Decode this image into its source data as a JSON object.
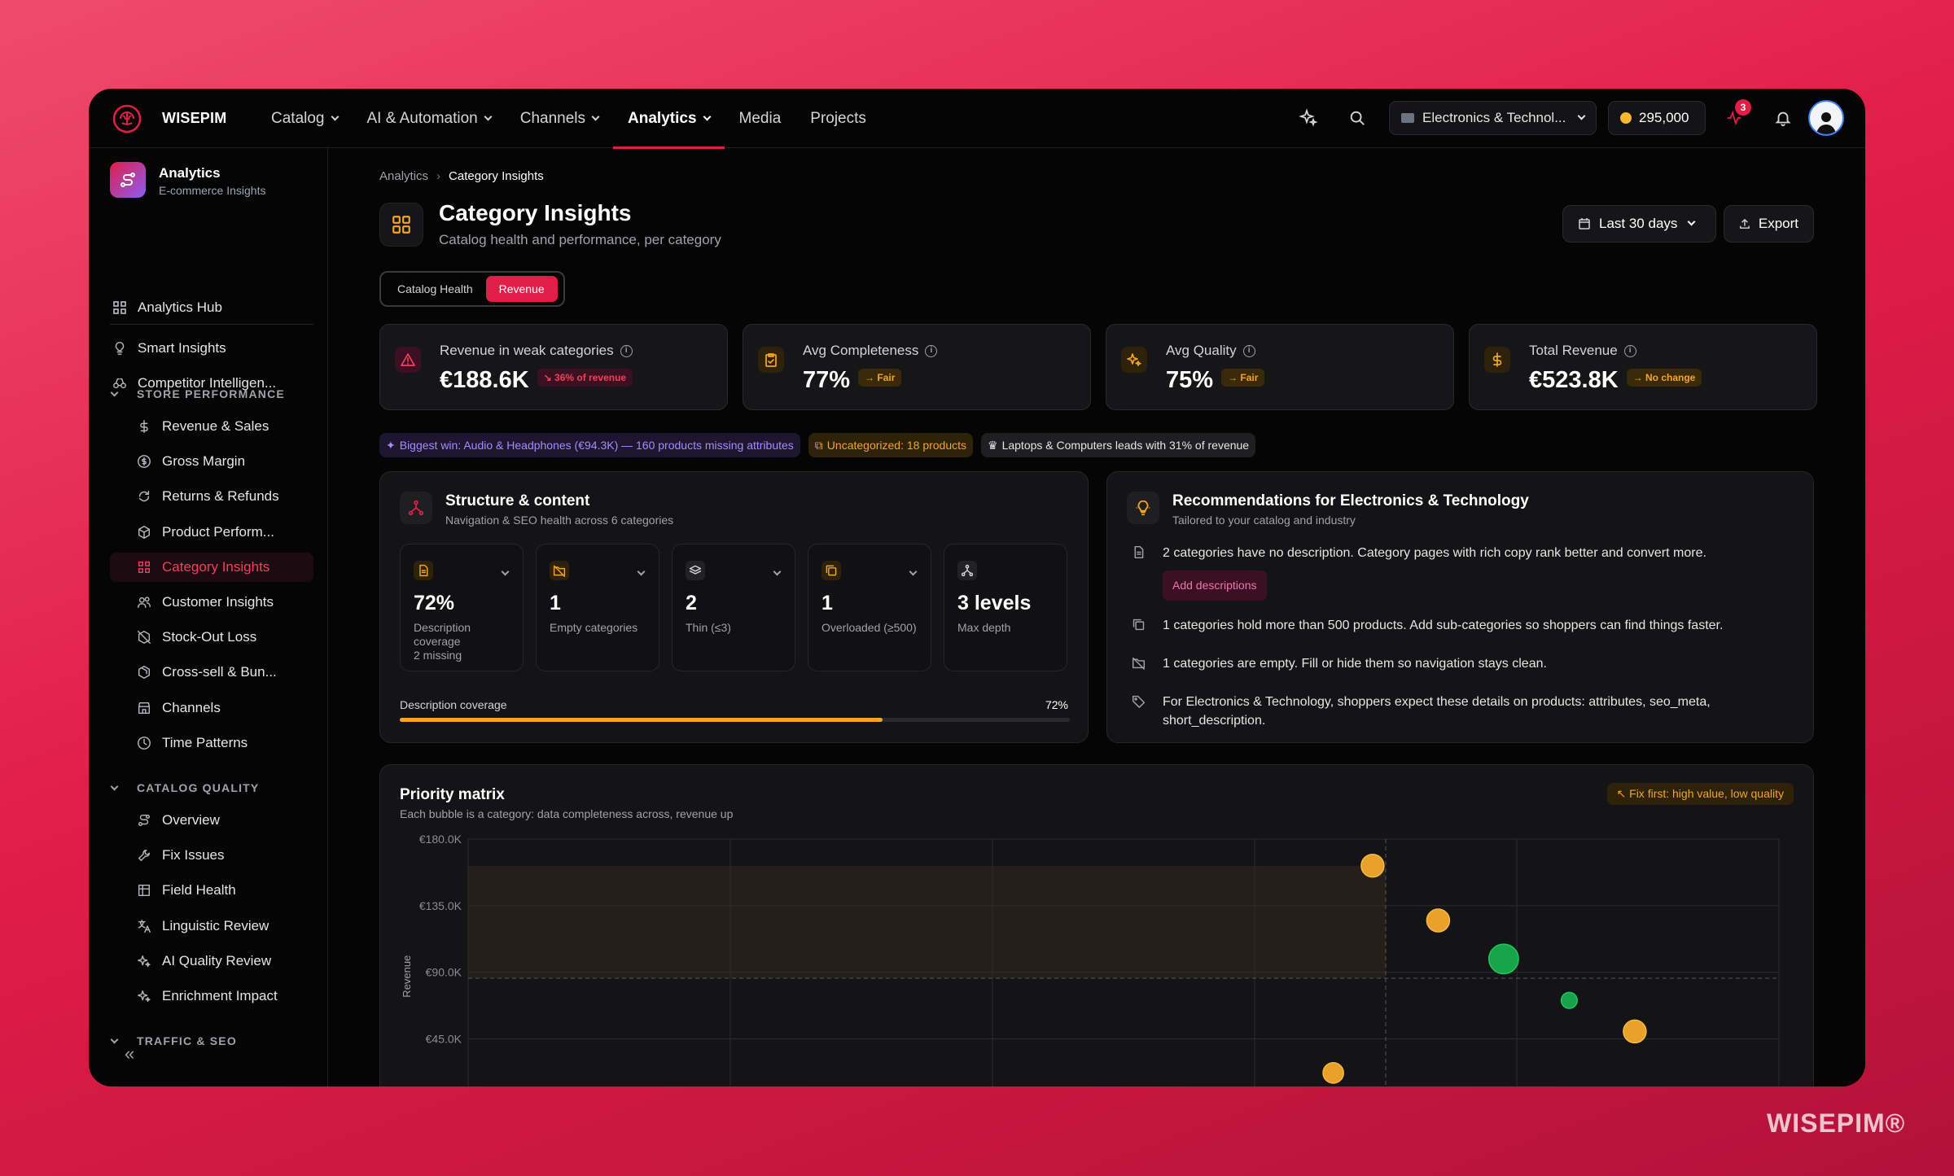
{
  "brand": "WISEPIM",
  "top_nav": [
    {
      "label": "Catalog",
      "has_menu": true
    },
    {
      "label": "AI & Automation",
      "has_menu": true
    },
    {
      "label": "Channels",
      "has_menu": true
    },
    {
      "label": "Analytics",
      "has_menu": true,
      "active": true
    },
    {
      "label": "Media",
      "has_menu": false
    },
    {
      "label": "Projects",
      "has_menu": false
    }
  ],
  "workspace": "Electronics & Technol...",
  "credits": "295,000",
  "notification_count": "3",
  "sidebar": {
    "product_title": "Analytics",
    "product_subtitle": "E-commerce Insights",
    "hub": "Analytics Hub",
    "items_top": [
      {
        "label": "Smart Insights",
        "icon": "lightbulb-icon"
      },
      {
        "label": "Competitor Intelligen...",
        "icon": "binoculars-icon"
      }
    ],
    "sections": [
      {
        "title": "STORE PERFORMANCE",
        "items": [
          {
            "label": "Revenue & Sales",
            "icon": "dollar-icon"
          },
          {
            "label": "Gross Margin",
            "icon": "coin-icon"
          },
          {
            "label": "Returns & Refunds",
            "icon": "refresh-icon"
          },
          {
            "label": "Product Perform...",
            "icon": "box-icon"
          },
          {
            "label": "Category Insights",
            "icon": "grid-icon",
            "active": true
          },
          {
            "label": "Customer Insights",
            "icon": "users-icon"
          },
          {
            "label": "Stock-Out Loss",
            "icon": "box-off-icon"
          },
          {
            "label": "Cross-sell & Bun...",
            "icon": "package-icon"
          },
          {
            "label": "Channels",
            "icon": "store-icon"
          },
          {
            "label": "Time Patterns",
            "icon": "clock-icon"
          }
        ]
      },
      {
        "title": "CATALOG QUALITY",
        "items": [
          {
            "label": "Overview",
            "icon": "route-icon"
          },
          {
            "label": "Fix Issues",
            "icon": "wrench-icon"
          },
          {
            "label": "Field Health",
            "icon": "table-icon"
          },
          {
            "label": "Linguistic Review",
            "icon": "translate-icon"
          },
          {
            "label": "AI Quality Review",
            "icon": "sparkles-icon"
          },
          {
            "label": "Enrichment Impact",
            "icon": "sparkles-icon"
          }
        ]
      },
      {
        "title": "TRAFFIC & SEO",
        "items": []
      }
    ]
  },
  "breadcrumb": {
    "parent": "Analytics",
    "current": "Category Insights"
  },
  "page": {
    "title": "Category Insights",
    "subtitle": "Catalog health and performance, per category"
  },
  "date_range": "Last 30 days",
  "export_label": "Export",
  "view_toggle": {
    "options": [
      "Catalog Health",
      "Revenue"
    ],
    "selected": "Revenue"
  },
  "kpis": [
    {
      "label": "Revenue in weak categories",
      "value": "€188.6K",
      "badge": "↘ 36% of revenue",
      "tone": "red",
      "icon": "alert-triangle-icon"
    },
    {
      "label": "Avg Completeness",
      "value": "77%",
      "badge": "→ Fair",
      "tone": "amber",
      "icon": "clipboard-check-icon"
    },
    {
      "label": "Avg Quality",
      "value": "75%",
      "badge": "→ Fair",
      "tone": "amber",
      "icon": "sparkles-icon"
    },
    {
      "label": "Total Revenue",
      "value": "€523.8K",
      "badge": "→ No change",
      "tone": "amber",
      "icon": "dollar-icon"
    }
  ],
  "chips": [
    {
      "text": "Biggest win: Audio & Headphones (€94.3K) — 160 products missing attributes",
      "tone": "purple",
      "icon": "sparkles-icon"
    },
    {
      "text": "Uncategorized: 18 products",
      "tone": "amber",
      "icon": "copy-icon"
    },
    {
      "text": "Laptops & Computers leads with 31% of revenue",
      "tone": "gray",
      "icon": "crown-icon"
    }
  ],
  "structure": {
    "title": "Structure & content",
    "subtitle": "Navigation & SEO health across 6 categories",
    "metrics": [
      {
        "value": "72%",
        "label": "Description coverage\n2 missing",
        "icon": "document-icon",
        "tone": "amber",
        "expandable": true
      },
      {
        "value": "1",
        "label": "Empty categories",
        "icon": "folder-off-icon",
        "tone": "amber",
        "expandable": true
      },
      {
        "value": "2",
        "label": "Thin (≤3)",
        "icon": "layers-icon",
        "tone": "gray",
        "expandable": true
      },
      {
        "value": "1",
        "label": "Overloaded (≥500)",
        "icon": "copy-icon",
        "tone": "amber",
        "expandable": true
      },
      {
        "value": "3 levels",
        "label": "Max depth",
        "icon": "hierarchy-icon",
        "tone": "gray",
        "expandable": false
      }
    ],
    "coverage_label": "Description coverage",
    "coverage_value": "72%",
    "coverage_fraction": 0.72
  },
  "recommendations": {
    "title": "Recommendations for Electronics & Technology",
    "subtitle": "Tailored to your catalog and industry",
    "items": [
      {
        "text": "2 categories have no description. Category pages with rich copy rank better and convert more.",
        "icon": "document-icon",
        "action": "Add descriptions"
      },
      {
        "text": "1 categories hold more than 500 products. Add sub-categories so shoppers can find things faster.",
        "icon": "copy-icon"
      },
      {
        "text": "1 categories are empty. Fill or hide them so navigation stays clean.",
        "icon": "folder-off-icon"
      },
      {
        "text": "For Electronics & Technology, shoppers expect these details on products: attributes, seo_meta, short_description.",
        "icon": "tag-icon"
      }
    ]
  },
  "priority_matrix": {
    "title": "Priority matrix",
    "subtitle": "Each bubble is a category: data completeness across, revenue up",
    "tag": "↖ Fix first: high value, low quality",
    "colors": {
      "amber": "#e8a22a",
      "green": "#16a34a",
      "accent": "#e11d48"
    }
  },
  "chart_data": {
    "type": "scatter",
    "title": "Priority matrix",
    "ylabel": "Revenue",
    "y_ticks": [
      "€180.0K",
      "€135.0K",
      "€90.0K",
      "€45.0K"
    ],
    "ylim": [
      0,
      180000
    ],
    "xlim": [
      0,
      100
    ],
    "grid": true,
    "points": [
      {
        "x": 69,
        "y": 162000,
        "size": 1,
        "color": "amber"
      },
      {
        "x": 74,
        "y": 125000,
        "size": 1,
        "color": "amber"
      },
      {
        "x": 79,
        "y": 99000,
        "size": 1.3,
        "color": "green"
      },
      {
        "x": 84,
        "y": 71000,
        "size": 0.7,
        "color": "green"
      },
      {
        "x": 89,
        "y": 50000,
        "size": 1,
        "color": "amber"
      },
      {
        "x": 66,
        "y": 22000,
        "size": 0.9,
        "color": "amber"
      }
    ],
    "reference_lines": {
      "x": 70,
      "y": 86000
    }
  },
  "watermark": "WISEPIM®"
}
